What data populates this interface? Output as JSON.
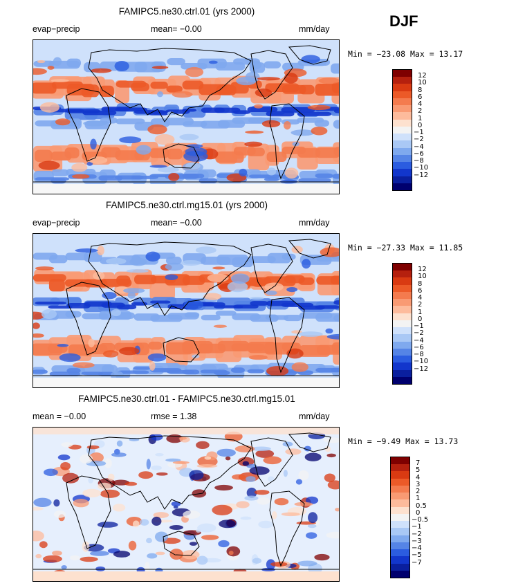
{
  "season": "DJF",
  "panels": [
    {
      "title": "FAMIPC5.ne30.ctrl.01 (yrs 2000)",
      "left_label": "evap−precip",
      "center_label": "mean=   −0.00",
      "right_label": "mm/day",
      "minmax": "Min = −23.08 Max =  13.17",
      "colorbar_labels": [
        "12",
        "10",
        "8",
        "6",
        "4",
        "2",
        "1",
        "0",
        "−1",
        "−2",
        "−4",
        "−6",
        "−8",
        "−10",
        "−12"
      ]
    },
    {
      "title": "FAMIPC5.ne30.ctrl.mg15.01 (yrs 2000)",
      "left_label": "evap−precip",
      "center_label": "mean=   −0.00",
      "right_label": "mm/day",
      "minmax": "Min = −27.33 Max =  11.85",
      "colorbar_labels": [
        "12",
        "10",
        "8",
        "6",
        "4",
        "2",
        "1",
        "0",
        "−1",
        "−2",
        "−4",
        "−6",
        "−8",
        "−10",
        "−12"
      ]
    },
    {
      "title": "FAMIPC5.ne30.ctrl.01 - FAMIPC5.ne30.ctrl.mg15.01",
      "left_label": "mean =   −0.00",
      "center_label": "rmse =    1.38",
      "right_label": "mm/day",
      "minmax": "Min =  −9.49 Max =  13.73",
      "colorbar_labels": [
        "7",
        "5",
        "4",
        "3",
        "2",
        "1",
        "0.5",
        "0",
        "−0.5",
        "−1",
        "−2",
        "−3",
        "−4",
        "−5",
        "−7"
      ]
    }
  ],
  "colors": {
    "palette": [
      "#7f0000",
      "#b5200e",
      "#d93a12",
      "#ec5a28",
      "#f47b4e",
      "#f99a73",
      "#fdbb9c",
      "#fde1cf",
      "#f3f3f3",
      "#cfe1fb",
      "#a9c8f5",
      "#7fa9ee",
      "#5584e6",
      "#2b5ce0",
      "#1236cc",
      "#0a1f9e",
      "#00006e"
    ],
    "land_line": "#000000"
  },
  "chart_data": [
    {
      "type": "heatmap",
      "title": "FAMIPC5.ne30.ctrl.01 (yrs 2000)",
      "variable": "evap−precip",
      "units": "mm/day",
      "mean": -0.0,
      "min": -23.08,
      "max": 13.17,
      "levels": [
        -12,
        -10,
        -8,
        -6,
        -4,
        -2,
        -1,
        0,
        1,
        2,
        4,
        6,
        8,
        10,
        12
      ]
    },
    {
      "type": "heatmap",
      "title": "FAMIPC5.ne30.ctrl.mg15.01 (yrs 2000)",
      "variable": "evap−precip",
      "units": "mm/day",
      "mean": -0.0,
      "min": -27.33,
      "max": 11.85,
      "levels": [
        -12,
        -10,
        -8,
        -6,
        -4,
        -2,
        -1,
        0,
        1,
        2,
        4,
        6,
        8,
        10,
        12
      ]
    },
    {
      "type": "heatmap",
      "title": "FAMIPC5.ne30.ctrl.01 - FAMIPC5.ne30.ctrl.mg15.01",
      "units": "mm/day",
      "mean": -0.0,
      "rmse": 1.38,
      "min": -9.49,
      "max": 13.73,
      "levels": [
        -7,
        -5,
        -4,
        -3,
        -2,
        -1,
        -0.5,
        0,
        0.5,
        1,
        2,
        3,
        4,
        5,
        7
      ]
    }
  ]
}
